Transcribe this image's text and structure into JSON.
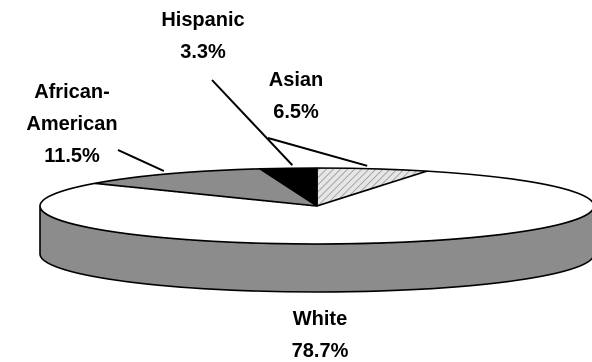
{
  "chart_data": {
    "type": "pie",
    "style": "3d",
    "title": "",
    "slices": [
      {
        "label_lines": [
          "Asian"
        ],
        "value_label": "6.5%",
        "value": 6.5,
        "fill": "hatched-light-gray"
      },
      {
        "label_lines": [
          "White"
        ],
        "value_label": "78.7%",
        "value": 78.7,
        "fill": "#ffffff"
      },
      {
        "label_lines": [
          "African-",
          "American"
        ],
        "value_label": "11.5%",
        "value": 11.5,
        "fill": "#8c8c8c"
      },
      {
        "label_lines": [
          "Hispanic"
        ],
        "value_label": "3.3%",
        "value": 3.3,
        "fill": "#000000"
      }
    ],
    "side_color": "#8c8c8c",
    "outline_color": "#000000"
  }
}
